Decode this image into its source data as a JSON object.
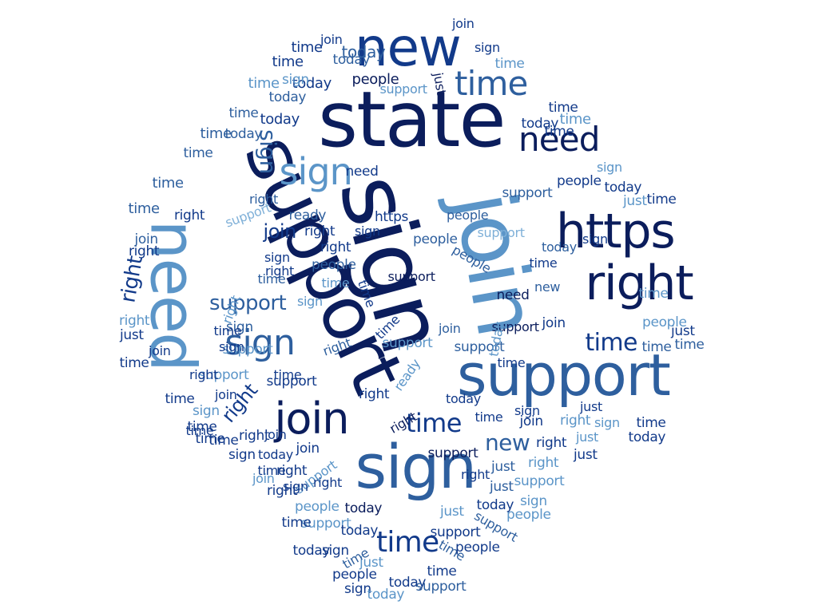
{
  "word_cloud": {
    "palette": [
      "#0b1d5c",
      "#123a8a",
      "#2e5f9e",
      "#5b95c8",
      "#7fb0d8"
    ],
    "background": "#ffffff",
    "words": [
      "new",
      "state",
      "sign",
      "support",
      "join",
      "need",
      "https",
      "right",
      "support",
      "sign",
      "join",
      "sign",
      "time",
      "need",
      "sign",
      "sign",
      "right",
      "time",
      "support",
      "join",
      "time",
      "time",
      "today",
      "people",
      "today",
      "time",
      "time",
      "today",
      "today",
      "time",
      "time",
      "time",
      "today",
      "time",
      "time",
      "time",
      "today",
      "join",
      "time",
      "time",
      "join",
      "sign",
      "sign",
      "support",
      "just",
      "today",
      "time",
      "today",
      "time",
      "time",
      "just",
      "right",
      "support",
      "ready",
      "https",
      "support",
      "people",
      "need",
      "sign",
      "right",
      "right",
      "people",
      "people",
      "time",
      "just",
      "join",
      "support",
      "time",
      "today",
      "time",
      "right",
      "sign",
      "people",
      "need",
      "support",
      "new",
      "time",
      "time",
      "sign",
      "just",
      "right",
      "join",
      "right",
      "support",
      "support",
      "time",
      "people",
      "sign",
      "time",
      "join",
      "right",
      "support",
      "ready",
      "support",
      "right",
      "join",
      "support",
      "support",
      "time",
      "sign",
      "join",
      "time",
      "right",
      "time",
      "right",
      "just",
      "right",
      "sign",
      "just",
      "today",
      "right",
      "time",
      "support",
      "right",
      "right",
      "new",
      "join",
      "right",
      "sign",
      "time",
      "support",
      "time",
      "sign",
      "right",
      "just",
      "right",
      "support",
      "just",
      "people",
      "today",
      "just",
      "people",
      "today",
      "support",
      "support",
      "time",
      "today",
      "support",
      "sign",
      "time",
      "people",
      "just",
      "time",
      "people",
      "sign",
      "today",
      "time",
      "support",
      "today",
      "today",
      "sign",
      "today",
      "join",
      "right",
      "time",
      "sign",
      "sign",
      "just",
      "time",
      "join",
      "join",
      "right",
      "time",
      "today",
      "right",
      "time",
      "time",
      "sign",
      "sign",
      "people",
      "time",
      "right",
      "today",
      "time",
      "right",
      "support",
      "support",
      "need",
      "people",
      "support",
      "support",
      "support",
      "support"
    ]
  }
}
